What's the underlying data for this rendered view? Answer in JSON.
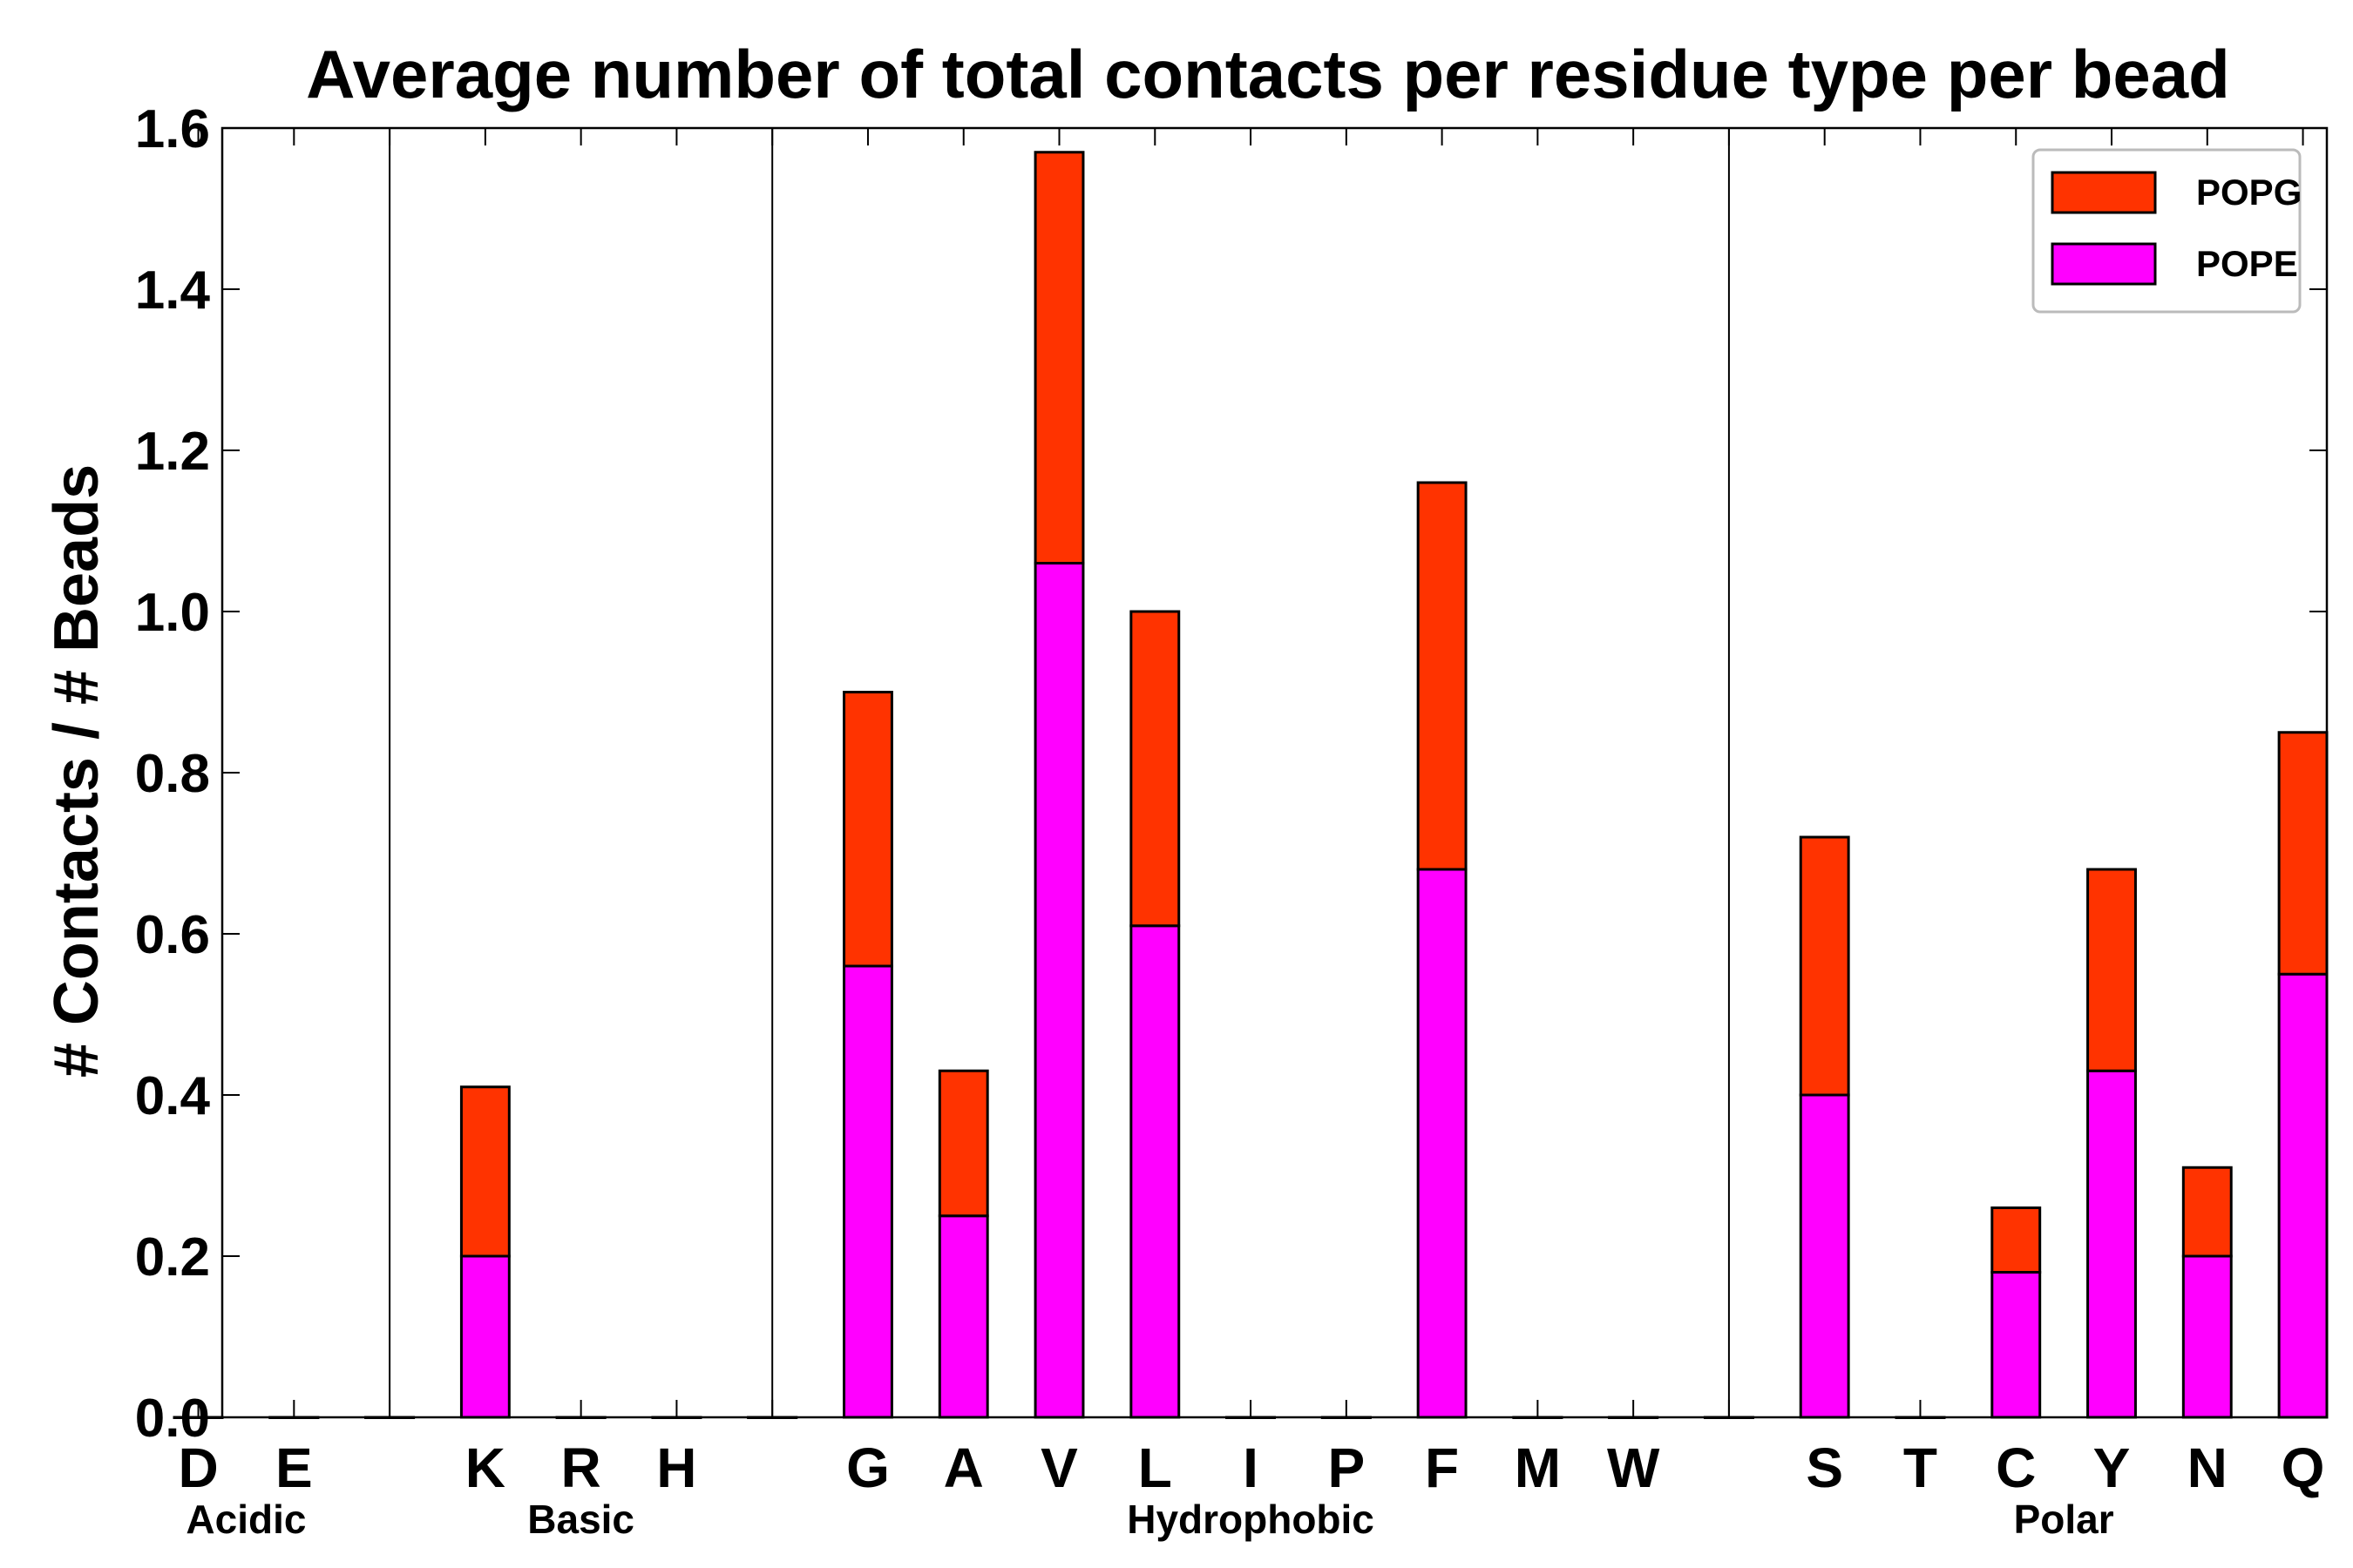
{
  "chart_data": {
    "type": "bar",
    "stacked": true,
    "title": "Average number of total contacts per residue type per bead",
    "xlabel": "",
    "ylabel": "# Contacts / # Beads",
    "ylim": [
      0.0,
      1.6
    ],
    "yticks": [
      "0.0",
      "0.2",
      "0.4",
      "0.6",
      "0.8",
      "1.0",
      "1.2",
      "1.4",
      "1.6"
    ],
    "legend_position": "top-right",
    "categories": [
      "D",
      "E",
      "",
      "K",
      "R",
      "H",
      "",
      "G",
      "A",
      "V",
      "L",
      "I",
      "P",
      "F",
      "M",
      "W",
      "",
      "S",
      "T",
      "C",
      "Y",
      "N",
      "Q"
    ],
    "groups": [
      {
        "label": "Acidic",
        "members": [
          "D",
          "E"
        ]
      },
      {
        "label": "Basic",
        "members": [
          "K",
          "R",
          "H"
        ]
      },
      {
        "label": "Hydrophobic",
        "members": [
          "G",
          "A",
          "V",
          "L",
          "I",
          "P",
          "F",
          "M",
          "W"
        ]
      },
      {
        "label": "Polar",
        "members": [
          "S",
          "T",
          "C",
          "Y",
          "N",
          "Q"
        ]
      }
    ],
    "series": [
      {
        "name": "POPE",
        "color": "#ff00ff",
        "values": [
          0,
          0,
          0,
          0.2,
          0,
          0,
          0,
          0.56,
          0.25,
          1.06,
          0.61,
          0,
          0,
          0.68,
          0,
          0,
          0,
          0.4,
          0,
          0.18,
          0.43,
          0.2,
          0.55
        ]
      },
      {
        "name": "POPG",
        "color": "#ff3300",
        "values": [
          0,
          0,
          0,
          0.21,
          0,
          0,
          0,
          0.34,
          0.18,
          0.51,
          0.39,
          0,
          0,
          0.48,
          0,
          0,
          0,
          0.32,
          0,
          0.08,
          0.25,
          0.11,
          0.3
        ]
      }
    ]
  }
}
